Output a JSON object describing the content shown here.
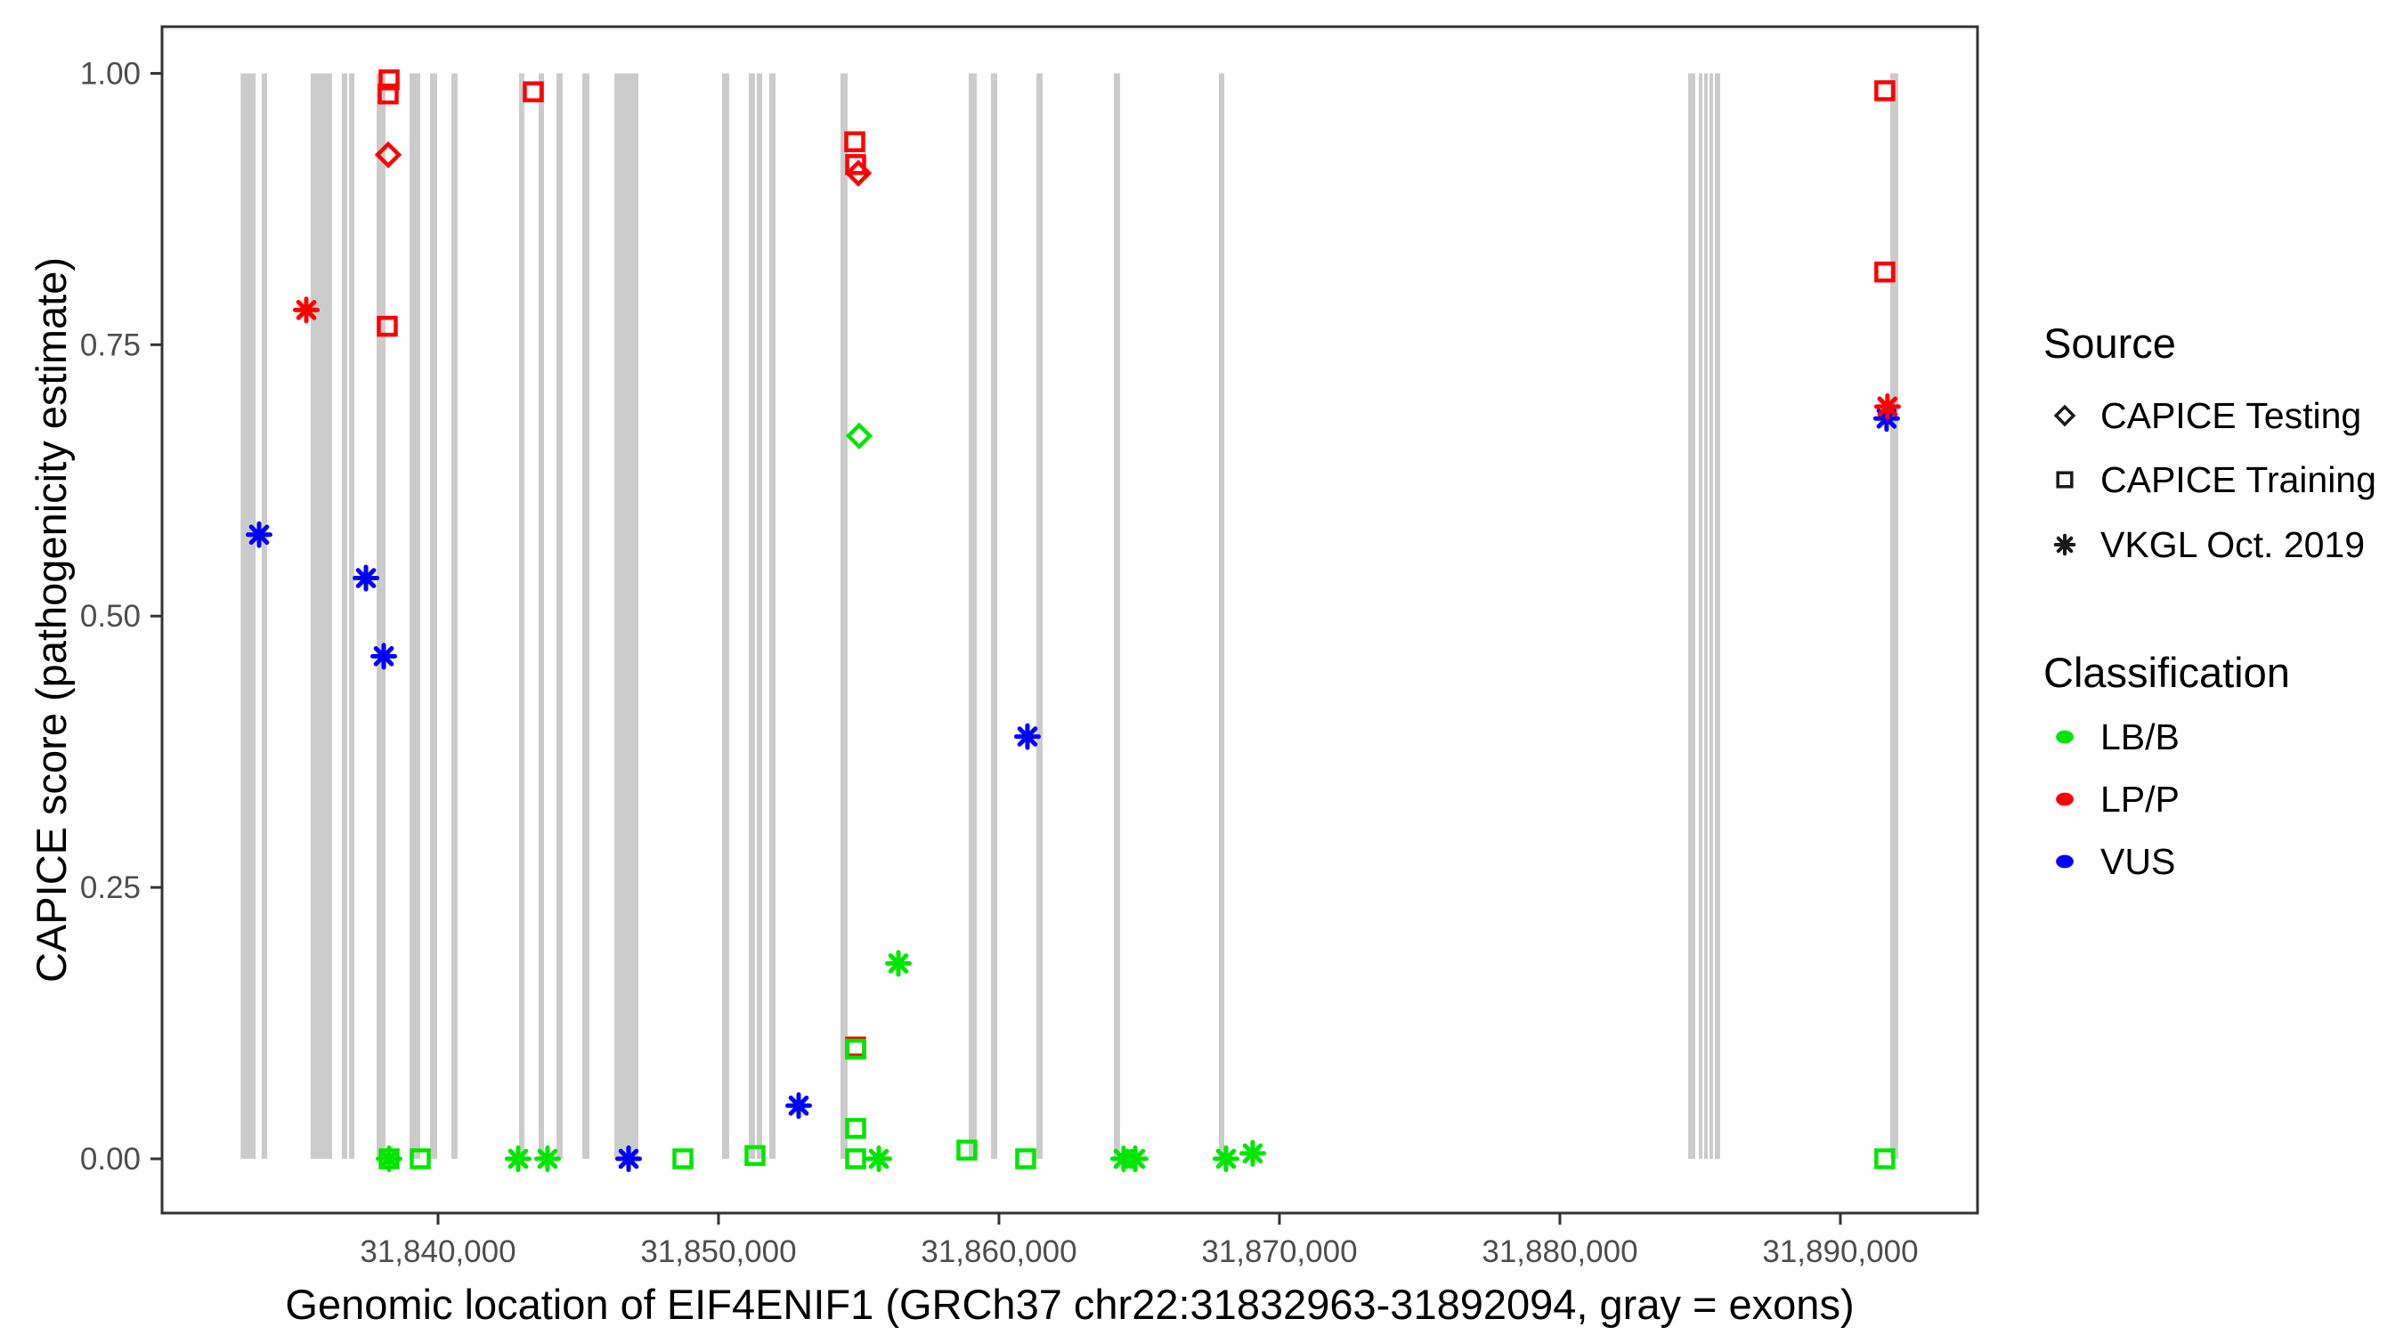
{
  "chart_data": {
    "type": "scatter",
    "title": "",
    "xlabel": "Genomic location of EIF4ENIF1 (GRCh37 chr22:31832963-31892094, gray = exons)",
    "ylabel": "CAPICE score (pathogenicity estimate)",
    "xlim": [
      31830160,
      31894890
    ],
    "ylim": [
      -0.05,
      1.043
    ],
    "grid": false,
    "exon_note": "gray vertical bands = exons, drawn from score 0.00 to 1.00",
    "exon_color": "#cbcbcb",
    "border_color": "#333333",
    "x_ticks": [
      {
        "value": 31840000,
        "label": "31,840,000"
      },
      {
        "value": 31850000,
        "label": "31,850,000"
      },
      {
        "value": 31860000,
        "label": "31,860,000"
      },
      {
        "value": 31870000,
        "label": "31,870,000"
      },
      {
        "value": 31880000,
        "label": "31,880,000"
      },
      {
        "value": 31890000,
        "label": "31,890,000"
      }
    ],
    "y_ticks": [
      {
        "value": 0.0,
        "label": "0.00"
      },
      {
        "value": 0.25,
        "label": "0.25"
      },
      {
        "value": 0.5,
        "label": "0.50"
      },
      {
        "value": 0.75,
        "label": "0.75"
      },
      {
        "value": 1.0,
        "label": "1.00"
      }
    ],
    "source_shapes": {
      "CAPICE Testing": "diamond",
      "CAPICE Training": "square",
      "VKGL Oct. 2019": "asterisk"
    },
    "class_colors": {
      "LB/B": "#00e600",
      "LP/P": "#ff0000",
      "VUS": "#0000ff"
    },
    "exons": [
      [
        31832963,
        31833500
      ],
      [
        31833714,
        31833905
      ],
      [
        31835460,
        31836222
      ],
      [
        31836571,
        31836762
      ],
      [
        31836825,
        31837016
      ],
      [
        31837810,
        31838127
      ],
      [
        31838984,
        31839365
      ],
      [
        31839714,
        31839968
      ],
      [
        31840476,
        31840698
      ],
      [
        31842889,
        31843079
      ],
      [
        31843587,
        31843778
      ],
      [
        31844222,
        31844444
      ],
      [
        31845143,
        31845397
      ],
      [
        31846286,
        31847143
      ],
      [
        31850127,
        31850381
      ],
      [
        31851079,
        31851302
      ],
      [
        31851365,
        31851556
      ],
      [
        31851810,
        31852032
      ],
      [
        31854349,
        31854603
      ],
      [
        31858921,
        31859206
      ],
      [
        31859714,
        31859937
      ],
      [
        31861333,
        31861556
      ],
      [
        31864095,
        31864317
      ],
      [
        31867841,
        31868032
      ],
      [
        31884571,
        31884825
      ],
      [
        31884952,
        31885079
      ],
      [
        31885143,
        31885270
      ],
      [
        31885333,
        31885460
      ],
      [
        31885524,
        31885714
      ],
      [
        31891778,
        31892063
      ]
    ],
    "points": [
      {
        "pos": 31833620,
        "score": 0.575,
        "source": "VKGL Oct. 2019",
        "classification": "VUS"
      },
      {
        "pos": 31835303,
        "score": 0.782,
        "source": "VKGL Oct. 2019",
        "classification": "LP/P"
      },
      {
        "pos": 31837430,
        "score": 0.535,
        "source": "VKGL Oct. 2019",
        "classification": "VUS"
      },
      {
        "pos": 31838065,
        "score": 0.463,
        "source": "VKGL Oct. 2019",
        "classification": "VUS"
      },
      {
        "pos": 31838255,
        "score": 0.994,
        "source": "CAPICE Training",
        "classification": "LP/P"
      },
      {
        "pos": 31838223,
        "score": 0.981,
        "source": "CAPICE Training",
        "classification": "LP/P"
      },
      {
        "pos": 31838223,
        "score": 0.925,
        "source": "CAPICE Testing",
        "classification": "LP/P"
      },
      {
        "pos": 31838191,
        "score": 0.767,
        "source": "CAPICE Training",
        "classification": "LP/P"
      },
      {
        "pos": 31838255,
        "score": 0.0,
        "source": "CAPICE Training",
        "classification": "LB/B"
      },
      {
        "pos": 31838255,
        "score": 0.0,
        "source": "VKGL Oct. 2019",
        "classification": "LB/B"
      },
      {
        "pos": 31839366,
        "score": 0.0,
        "source": "CAPICE Training",
        "classification": "LB/B"
      },
      {
        "pos": 31843397,
        "score": 0.983,
        "source": "CAPICE Training",
        "classification": "LP/P"
      },
      {
        "pos": 31842857,
        "score": 0.0,
        "source": "VKGL Oct. 2019",
        "classification": "LB/B"
      },
      {
        "pos": 31843905,
        "score": 0.0,
        "source": "VKGL Oct. 2019",
        "classification": "LB/B"
      },
      {
        "pos": 31846794,
        "score": 0.0,
        "source": "VKGL Oct. 2019",
        "classification": "VUS"
      },
      {
        "pos": 31848731,
        "score": 0.0,
        "source": "CAPICE Training",
        "classification": "LB/B"
      },
      {
        "pos": 31851302,
        "score": 0.003,
        "source": "CAPICE Training",
        "classification": "LB/B"
      },
      {
        "pos": 31852858,
        "score": 0.049,
        "source": "VKGL Oct. 2019",
        "classification": "VUS"
      },
      {
        "pos": 31854858,
        "score": 0.937,
        "source": "CAPICE Training",
        "classification": "LP/P"
      },
      {
        "pos": 31854890,
        "score": 0.916,
        "source": "CAPICE Training",
        "classification": "LP/P"
      },
      {
        "pos": 31854985,
        "score": 0.908,
        "source": "CAPICE Testing",
        "classification": "LP/P"
      },
      {
        "pos": 31855017,
        "score": 0.666,
        "source": "CAPICE Testing",
        "classification": "LB/B"
      },
      {
        "pos": 31856413,
        "score": 0.18,
        "source": "VKGL Oct. 2019",
        "classification": "LB/B"
      },
      {
        "pos": 31854890,
        "score": 0.103,
        "source": "CAPICE Training",
        "classification": "LP/P"
      },
      {
        "pos": 31854890,
        "score": 0.101,
        "source": "CAPICE Training",
        "classification": "LB/B"
      },
      {
        "pos": 31854890,
        "score": 0.028,
        "source": "CAPICE Training",
        "classification": "LB/B"
      },
      {
        "pos": 31854890,
        "score": 0.0,
        "source": "CAPICE Training",
        "classification": "LB/B"
      },
      {
        "pos": 31855715,
        "score": 0.0,
        "source": "VKGL Oct. 2019",
        "classification": "LB/B"
      },
      {
        "pos": 31858857,
        "score": 0.008,
        "source": "CAPICE Training",
        "classification": "LB/B"
      },
      {
        "pos": 31861016,
        "score": 0.389,
        "source": "VKGL Oct. 2019",
        "classification": "VUS"
      },
      {
        "pos": 31860952,
        "score": 0.0,
        "source": "CAPICE Training",
        "classification": "LB/B"
      },
      {
        "pos": 31864444,
        "score": 0.0,
        "source": "VKGL Oct. 2019",
        "classification": "LB/B"
      },
      {
        "pos": 31864857,
        "score": 0.0,
        "source": "VKGL Oct. 2019",
        "classification": "LB/B"
      },
      {
        "pos": 31868095,
        "score": 0.0,
        "source": "VKGL Oct. 2019",
        "classification": "LB/B"
      },
      {
        "pos": 31869047,
        "score": 0.005,
        "source": "VKGL Oct. 2019",
        "classification": "LB/B"
      },
      {
        "pos": 31891584,
        "score": 0.984,
        "source": "CAPICE Training",
        "classification": "LP/P"
      },
      {
        "pos": 31891584,
        "score": 0.817,
        "source": "CAPICE Training",
        "classification": "LP/P"
      },
      {
        "pos": 31891648,
        "score": 0.682,
        "source": "VKGL Oct. 2019",
        "classification": "VUS"
      },
      {
        "pos": 31891679,
        "score": 0.693,
        "source": "VKGL Oct. 2019",
        "classification": "LP/P"
      },
      {
        "pos": 31891584,
        "score": 0.0,
        "source": "CAPICE Training",
        "classification": "LB/B"
      }
    ]
  },
  "legend": {
    "source": {
      "title": "Source",
      "items": [
        {
          "label": "CAPICE Testing",
          "shape": "diamond"
        },
        {
          "label": "CAPICE Training",
          "shape": "square"
        },
        {
          "label": "VKGL Oct. 2019",
          "shape": "asterisk"
        }
      ]
    },
    "classification": {
      "title": "Classification",
      "items": [
        {
          "label": "LB/B",
          "color": "#00e600"
        },
        {
          "label": "LP/P",
          "color": "#ff0000"
        },
        {
          "label": "VUS",
          "color": "#0000ff"
        }
      ]
    }
  }
}
